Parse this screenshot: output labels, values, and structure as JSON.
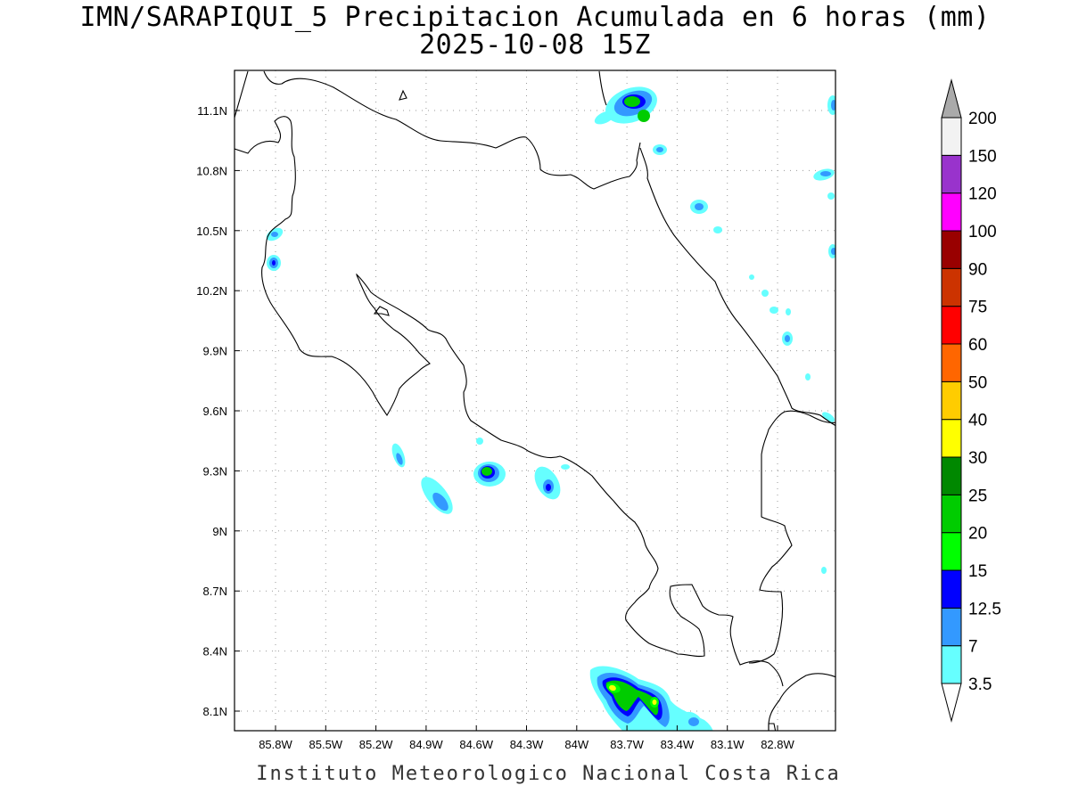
{
  "title_line1": "IMN/SARAPIQUI_5 Precipitacion Acumulada en 6 horas (mm)",
  "title_line2": "2025-10-08 15Z",
  "footer": "Instituto Meteorologico Nacional Costa Rica",
  "map": {
    "lon_range": [
      -86.0,
      -83.0
    ],
    "lat_range": [
      8.0,
      11.3
    ],
    "grid": true,
    "lon_ticks": [
      "85.8W",
      "85.5W",
      "85.2W",
      "84.9W",
      "84.6W",
      "84.3W",
      "84W",
      "83.7W",
      "83.4W",
      "83.1W",
      "82.8W"
    ],
    "lat_ticks": [
      "11.1N",
      "10.8N",
      "10.5N",
      "10.2N",
      "9.9N",
      "9.6N",
      "9.3N",
      "9N",
      "8.7N",
      "8.4N",
      "8.1N"
    ]
  },
  "colorbar": {
    "labels": [
      "3.5",
      "7",
      "12.5",
      "15",
      "20",
      "25",
      "30",
      "40",
      "50",
      "60",
      "75",
      "90",
      "100",
      "120",
      "150",
      "200"
    ],
    "colors": [
      "#ffffff",
      "#66ffff",
      "#3399ff",
      "#0000ff",
      "#00ff00",
      "#00cc00",
      "#008800",
      "#ffff00",
      "#ffcc00",
      "#ff6600",
      "#ff0000",
      "#cc3300",
      "#990000",
      "#ff00ff",
      "#9933cc",
      "#f2f2f2",
      "#aaaaaa"
    ],
    "orientation": "vertical",
    "placement": "right"
  }
}
